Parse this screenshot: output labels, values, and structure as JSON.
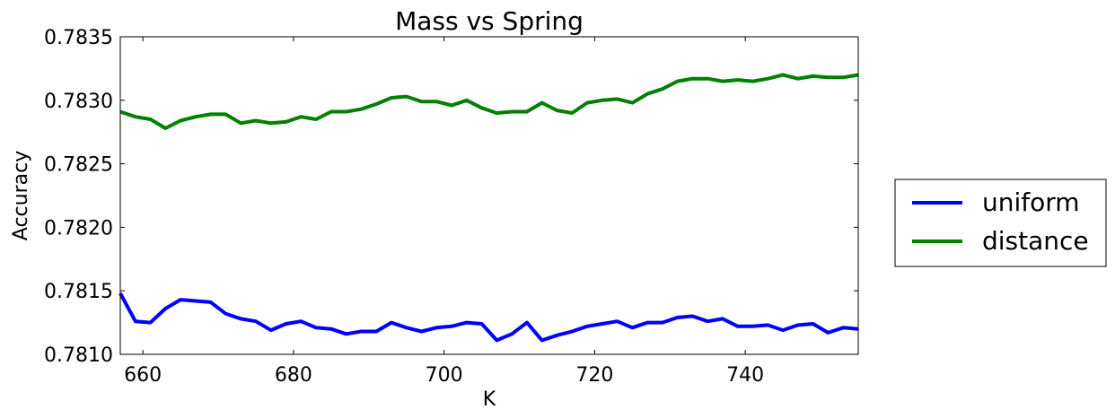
{
  "chart_data": {
    "type": "line",
    "title": "Mass vs Spring",
    "xlabel": "K",
    "ylabel": "Accuracy",
    "xlim": [
      657,
      755
    ],
    "ylim": [
      0.781,
      0.7835
    ],
    "xticks": [
      660,
      680,
      700,
      720,
      740
    ],
    "xtick_labels": [
      "660",
      "680",
      "700",
      "720",
      "740"
    ],
    "yticks": [
      0.781,
      0.7815,
      0.782,
      0.7825,
      0.783,
      0.7835
    ],
    "ytick_labels": [
      "0.7810",
      "0.7815",
      "0.7820",
      "0.7825",
      "0.7830",
      "0.7835"
    ],
    "grid": false,
    "legend_position": "outside-right",
    "x": [
      657,
      659,
      661,
      663,
      665,
      667,
      669,
      671,
      673,
      675,
      677,
      679,
      681,
      683,
      685,
      687,
      689,
      691,
      693,
      695,
      697,
      699,
      701,
      703,
      705,
      707,
      709,
      711,
      713,
      715,
      717,
      719,
      721,
      723,
      725,
      727,
      729,
      731,
      733,
      735,
      737,
      739,
      741,
      743,
      745,
      747,
      749,
      751,
      753,
      755
    ],
    "series": [
      {
        "name": "uniform",
        "color": "#0000ff",
        "values": [
          0.78148,
          0.78126,
          0.78125,
          0.78136,
          0.78143,
          0.78142,
          0.78141,
          0.78132,
          0.78128,
          0.78126,
          0.78119,
          0.78124,
          0.78126,
          0.78121,
          0.7812,
          0.78116,
          0.78118,
          0.78118,
          0.78125,
          0.78121,
          0.78118,
          0.78121,
          0.78122,
          0.78125,
          0.78124,
          0.78111,
          0.78116,
          0.78125,
          0.78111,
          0.78115,
          0.78118,
          0.78122,
          0.78124,
          0.78126,
          0.78121,
          0.78125,
          0.78125,
          0.78129,
          0.7813,
          0.78126,
          0.78128,
          0.78122,
          0.78122,
          0.78123,
          0.78119,
          0.78123,
          0.78124,
          0.78117,
          0.78121,
          0.7812
        ]
      },
      {
        "name": "distance",
        "color": "#008000",
        "values": [
          0.78291,
          0.78287,
          0.78285,
          0.78278,
          0.78284,
          0.78287,
          0.78289,
          0.78289,
          0.78282,
          0.78284,
          0.78282,
          0.78283,
          0.78287,
          0.78285,
          0.78291,
          0.78291,
          0.78293,
          0.78297,
          0.78302,
          0.78303,
          0.78299,
          0.78299,
          0.78296,
          0.783,
          0.78294,
          0.7829,
          0.78291,
          0.78291,
          0.78298,
          0.78292,
          0.7829,
          0.78298,
          0.783,
          0.78301,
          0.78298,
          0.78305,
          0.78309,
          0.78315,
          0.78317,
          0.78317,
          0.78315,
          0.78316,
          0.78315,
          0.78317,
          0.7832,
          0.78317,
          0.78319,
          0.78318,
          0.78318,
          0.7832
        ]
      }
    ]
  }
}
